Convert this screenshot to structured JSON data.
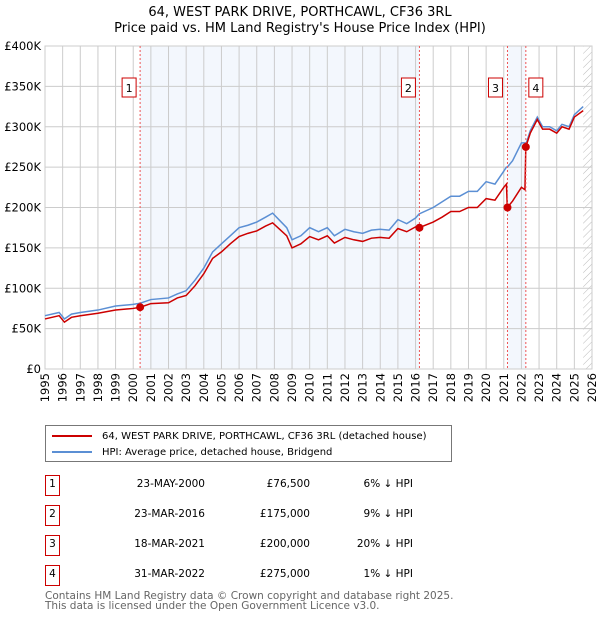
{
  "chart_data": {
    "type": "line",
    "title": "64, WEST PARK DRIVE, PORTHCAWL, CF36 3RL",
    "subtitle": "Price paid vs. HM Land Registry's House Price Index (HPI)",
    "xlim": [
      1995,
      2026
    ],
    "ylim": [
      0,
      400000
    ],
    "y_ticks": [
      {
        "v": 0,
        "l": "£0"
      },
      {
        "v": 50000,
        "l": "£50K"
      },
      {
        "v": 100000,
        "l": "£100K"
      },
      {
        "v": 150000,
        "l": "£150K"
      },
      {
        "v": 200000,
        "l": "£200K"
      },
      {
        "v": 250000,
        "l": "£250K"
      },
      {
        "v": 300000,
        "l": "£300K"
      },
      {
        "v": 350000,
        "l": "£350K"
      },
      {
        "v": 400000,
        "l": "£400K"
      }
    ],
    "x_ticks": [
      "1995",
      "1996",
      "1997",
      "1998",
      "1999",
      "2000",
      "2001",
      "2002",
      "2003",
      "2004",
      "2005",
      "2006",
      "2007",
      "2008",
      "2009",
      "2010",
      "2011",
      "2012",
      "2013",
      "2014",
      "2015",
      "2016",
      "2017",
      "2018",
      "2019",
      "2020",
      "2021",
      "2022",
      "2023",
      "2024",
      "2025",
      "2026"
    ],
    "x": [
      1995.0,
      1995.8,
      1996.1,
      1996.5,
      1997.0,
      1998.0,
      1999.0,
      2000.0,
      2000.4,
      2001.0,
      2002.0,
      2002.5,
      2003.0,
      2003.5,
      2004.0,
      2004.5,
      2005.0,
      2005.5,
      2006.0,
      2006.5,
      2007.0,
      2007.5,
      2007.9,
      2008.3,
      2008.7,
      2009.0,
      2009.5,
      2010.0,
      2010.5,
      2011.0,
      2011.4,
      2012.0,
      2012.5,
      2013.0,
      2013.5,
      2014.0,
      2014.5,
      2015.0,
      2015.5,
      2016.0,
      2016.2,
      2017.0,
      2017.5,
      2018.0,
      2018.5,
      2019.0,
      2019.5,
      2020.0,
      2020.5,
      2021.0,
      2021.15,
      2021.2,
      2021.5,
      2022.0,
      2022.2,
      2022.25,
      2022.5,
      2022.9,
      2023.2,
      2023.6,
      2024.0,
      2024.3,
      2024.7,
      2025.0,
      2025.5
    ],
    "series": [
      {
        "name": "64, WEST PARK DRIVE, PORTHCAWL, CF36 3RL (detached house)",
        "color": "#cc0000",
        "values": [
          62,
          66,
          58,
          64,
          66,
          69,
          73,
          75,
          76.5,
          81,
          82,
          88,
          91,
          103,
          118,
          137,
          145,
          155,
          164,
          168,
          171,
          177,
          181,
          173,
          165,
          150,
          155,
          164,
          160,
          165,
          156,
          163,
          160,
          158,
          162,
          163,
          162,
          174,
          170,
          176,
          175,
          182,
          188,
          195,
          195,
          200,
          200,
          211,
          209,
          225,
          229,
          200,
          208,
          225,
          222,
          275,
          292,
          309,
          297,
          297,
          292,
          300,
          297,
          312,
          320
        ]
      },
      {
        "name": "HPI: Average price, detached house, Bridgend",
        "color": "#5b8fd4",
        "values": [
          66,
          70,
          62,
          68,
          70,
          73,
          78,
          80,
          81.5,
          86,
          88,
          93,
          97,
          110,
          125,
          145,
          155,
          165,
          175,
          178,
          182,
          188,
          193,
          184,
          175,
          160,
          165,
          175,
          170,
          175,
          165,
          173,
          170,
          168,
          172,
          173,
          172,
          185,
          180,
          187,
          192,
          200,
          207,
          214,
          214,
          220,
          220,
          232,
          229,
          245,
          250,
          250,
          258,
          280,
          280,
          278,
          295,
          312,
          300,
          300,
          295,
          303,
          300,
          315,
          325
        ]
      }
    ],
    "value_unit": "£K",
    "sales": [
      {
        "n": "1",
        "x": 2000.39,
        "date": "23-MAY-2000",
        "price": "£76,500",
        "value": 76.5,
        "hpi": "6% ↓ HPI"
      },
      {
        "n": "2",
        "x": 2016.22,
        "date": "23-MAR-2016",
        "price": "£175,000",
        "value": 175,
        "hpi": "9% ↓ HPI"
      },
      {
        "n": "3",
        "x": 2021.21,
        "date": "18-MAR-2021",
        "price": "£200,000",
        "value": 200,
        "hpi": "20% ↓ HPI"
      },
      {
        "n": "4",
        "x": 2022.25,
        "date": "31-MAR-2022",
        "price": "£275,000",
        "value": 275,
        "hpi": "1% ↓ HPI"
      }
    ],
    "footer_1": "Contains HM Land Registry data © Crown copyright and database right 2025.",
    "footer_2": "This data is licensed under the Open Government Licence v3.0."
  }
}
